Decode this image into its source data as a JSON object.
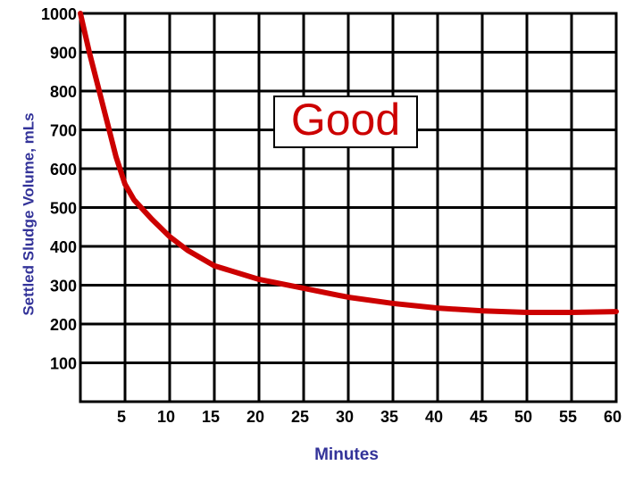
{
  "chart_data": {
    "type": "line",
    "x_label": "Minutes",
    "y_label": "Settled Sludge Volume, mLs",
    "annotation": "Good",
    "x": [
      0,
      1,
      2,
      3,
      4,
      5,
      6,
      8,
      10,
      12,
      15,
      20,
      25,
      30,
      35,
      40,
      45,
      50,
      55,
      60
    ],
    "series": [
      {
        "name": "Settled sludge volume",
        "color": "#cc0000",
        "values": [
          1000,
          900,
          810,
          720,
          630,
          560,
          520,
          470,
          425,
          390,
          350,
          315,
          292,
          269,
          253,
          241,
          234,
          230,
          230,
          232
        ]
      }
    ],
    "xlim": [
      0,
      60
    ],
    "ylim": [
      0,
      1000
    ],
    "xticks": [
      5,
      10,
      15,
      20,
      25,
      30,
      35,
      40,
      45,
      50,
      55,
      60
    ],
    "yticks": [
      100,
      200,
      300,
      400,
      500,
      600,
      700,
      800,
      900,
      1000
    ],
    "grid": true
  }
}
